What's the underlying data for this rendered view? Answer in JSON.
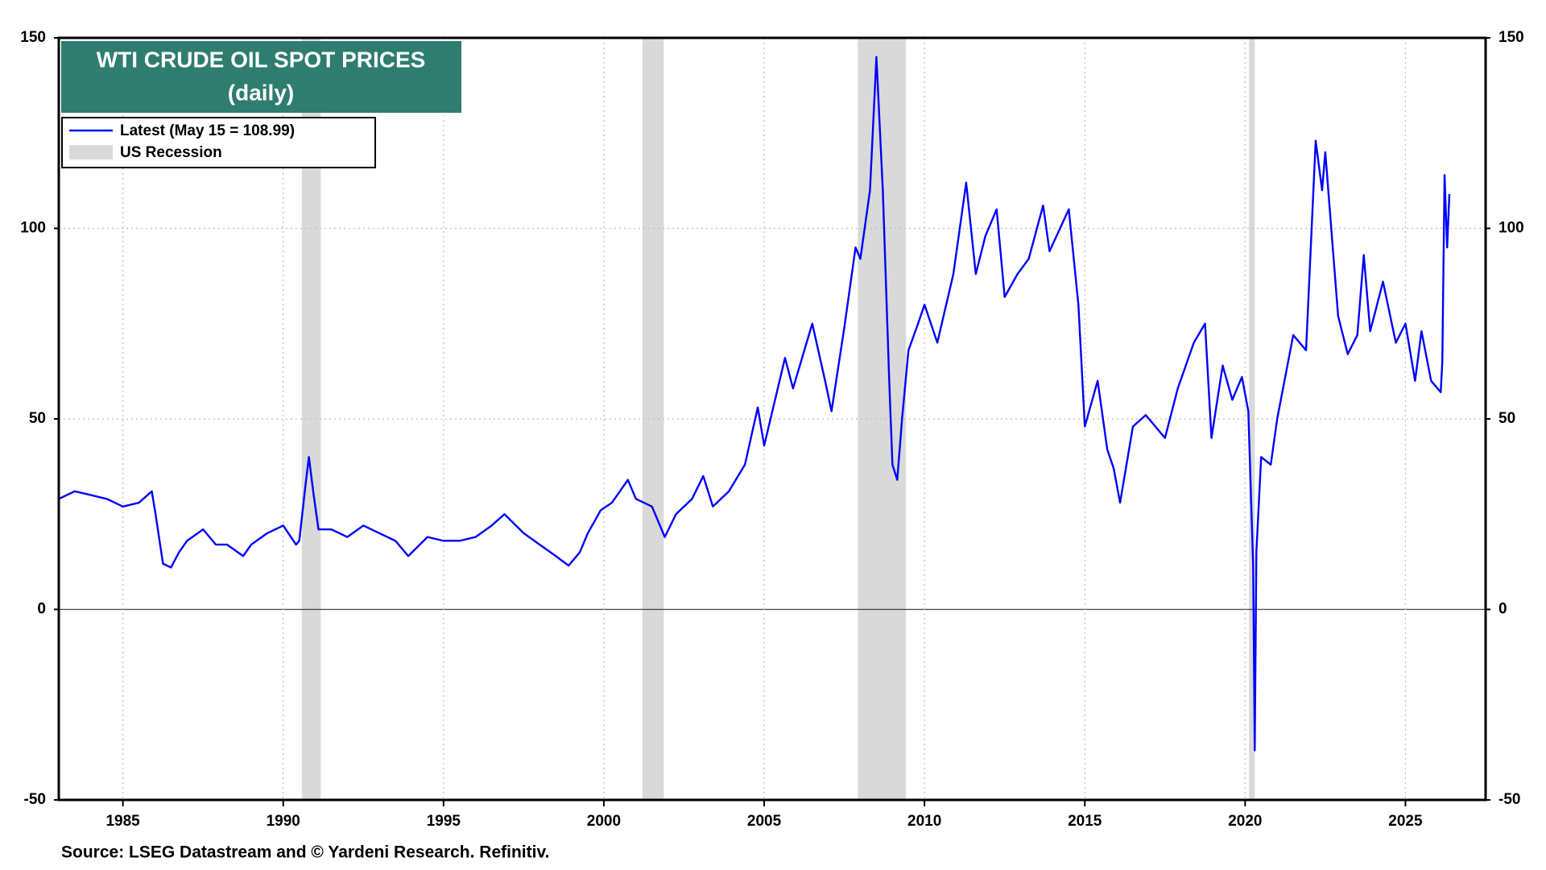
{
  "chart_data": {
    "type": "line",
    "title": "WTI CRUDE OIL SPOT PRICES",
    "subtitle": "(daily)",
    "source": "Source: LSEG Datastream and © Yardeni Research. Refinitiv.",
    "xlim": [
      1983,
      2027.5
    ],
    "xticks": [
      1985,
      1990,
      1995,
      2000,
      2005,
      2010,
      2015,
      2020,
      2025
    ],
    "ylim": [
      -50,
      150
    ],
    "yticks": [
      -50,
      0,
      50,
      100,
      150
    ],
    "y2lim": [
      -50,
      150
    ],
    "y2ticks": [
      -50,
      0,
      50,
      100,
      150
    ],
    "grid": true,
    "legend": "top-left",
    "recession": {
      "name": "US Recession",
      "color": "#d9d9d9",
      "ranges": [
        [
          1990.58,
          1991.17
        ],
        [
          2001.2,
          2001.87
        ],
        [
          2007.92,
          2009.42
        ],
        [
          2020.12,
          2020.3
        ]
      ]
    },
    "series": [
      {
        "name": "Latest (May 15 = 108.99)",
        "color": "#0000ff",
        "x": [
          1983.0,
          1983.5,
          1984.0,
          1984.5,
          1985.0,
          1985.5,
          1985.9,
          1986.0,
          1986.25,
          1986.5,
          1986.75,
          1987.0,
          1987.5,
          1987.9,
          1988.25,
          1988.75,
          1989.0,
          1989.5,
          1990.0,
          1990.4,
          1990.5,
          1990.7,
          1990.8,
          1990.95,
          1991.1,
          1991.5,
          1992.0,
          1992.5,
          1993.0,
          1993.5,
          1993.9,
          1994.5,
          1995.0,
          1995.5,
          1996.0,
          1996.5,
          1996.9,
          1997.5,
          1998.0,
          1998.5,
          1998.9,
          1999.25,
          1999.5,
          1999.9,
          2000.25,
          2000.75,
          2001.0,
          2001.5,
          2001.9,
          2002.25,
          2002.75,
          2003.1,
          2003.4,
          2003.9,
          2004.4,
          2004.8,
          2005.0,
          2005.65,
          2005.9,
          2006.5,
          2006.9,
          2007.1,
          2007.5,
          2007.85,
          2008.0,
          2008.3,
          2008.5,
          2008.7,
          2008.9,
          2009.0,
          2009.15,
          2009.3,
          2009.5,
          2009.8,
          2010.0,
          2010.4,
          2010.9,
          2011.3,
          2011.6,
          2011.9,
          2012.25,
          2012.5,
          2012.9,
          2013.25,
          2013.7,
          2013.9,
          2014.5,
          2014.8,
          2015.0,
          2015.4,
          2015.7,
          2015.9,
          2016.1,
          2016.5,
          2016.9,
          2017.5,
          2017.9,
          2018.4,
          2018.75,
          2018.95,
          2019.3,
          2019.6,
          2019.9,
          2020.1,
          2020.2,
          2020.25,
          2020.3,
          2020.35,
          2020.5,
          2020.8,
          2021.0,
          2021.5,
          2021.9,
          2022.2,
          2022.4,
          2022.5,
          2022.9,
          2023.2,
          2023.5,
          2023.7,
          2023.9,
          2024.3,
          2024.7,
          2025.0,
          2025.3,
          2025.5,
          2025.8,
          2026.1,
          2026.15,
          2026.22,
          2026.3,
          2026.37
        ],
        "values": [
          29,
          31,
          30,
          29,
          27,
          28,
          31,
          26,
          12,
          11,
          15,
          18,
          21,
          17,
          17,
          14,
          17,
          20,
          22,
          17,
          18,
          33,
          40,
          30,
          21,
          21,
          19,
          22,
          20,
          18,
          14,
          19,
          18,
          18,
          19,
          22,
          25,
          20,
          17,
          14,
          11.5,
          15,
          20,
          26,
          28,
          34,
          29,
          27,
          19,
          25,
          29,
          35,
          27,
          31,
          38,
          53,
          43,
          66,
          58,
          75,
          60,
          52,
          74,
          95,
          92,
          110,
          145,
          110,
          60,
          38,
          34,
          50,
          68,
          75,
          80,
          70,
          88,
          112,
          88,
          98,
          105,
          82,
          88,
          92,
          106,
          94,
          105,
          80,
          48,
          60,
          42,
          37,
          28,
          48,
          51,
          45,
          58,
          70,
          75,
          45,
          64,
          55,
          61,
          52,
          25,
          12,
          -37,
          15,
          40,
          38,
          50,
          72,
          68,
          123,
          110,
          120,
          77,
          67,
          72,
          93,
          73,
          86,
          70,
          75,
          60,
          73,
          60,
          57,
          65,
          114,
          95,
          108.99
        ]
      }
    ]
  }
}
